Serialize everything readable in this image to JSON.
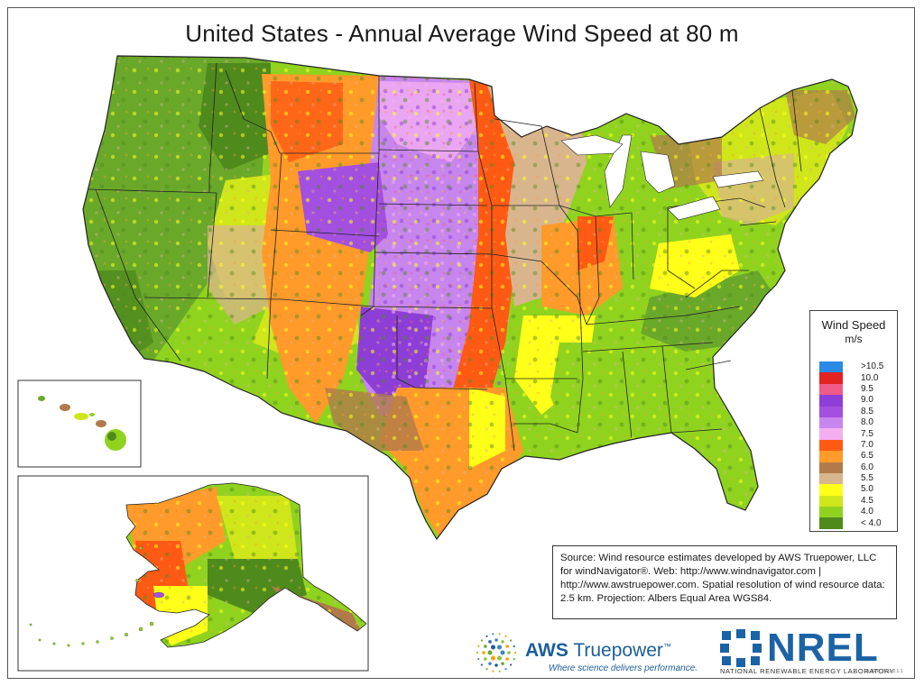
{
  "title": "United States - Annual Average Wind Speed at 80 m",
  "legend": {
    "title": "Wind Speed",
    "unit": "m/s",
    "items": [
      {
        "label": ">10.5",
        "color": "#2a8ae6"
      },
      {
        "label": "10.0",
        "color": "#e32222"
      },
      {
        "label": "9.5",
        "color": "#ef5a8a"
      },
      {
        "label": "9.0",
        "color": "#8d3ed6"
      },
      {
        "label": "8.5",
        "color": "#a34fe0"
      },
      {
        "label": "8.0",
        "color": "#c785ee"
      },
      {
        "label": "7.5",
        "color": "#f3aef2"
      },
      {
        "label": "7.0",
        "color": "#ff5a14"
      },
      {
        "label": "6.5",
        "color": "#ff9a2b"
      },
      {
        "label": "6.0",
        "color": "#b07a4a"
      },
      {
        "label": "5.5",
        "color": "#d9b58e"
      },
      {
        "label": "5.0",
        "color": "#ffff1a"
      },
      {
        "label": "4.5",
        "color": "#cfe61a"
      },
      {
        "label": "4.0",
        "color": "#8fd31f"
      },
      {
        "label": "< 4.0",
        "color": "#4f8a1d"
      }
    ]
  },
  "source_note": "Source: Wind resource estimates developed by AWS Truepower, LLC for windNavigator®. Web: http://www.windnavigator.com | http://www.awstruepower.com. Spatial resolution of wind resource data: 2.5 km. Projection: Albers Equal Area WGS84.",
  "logos": {
    "aws_brand_a": "AWS",
    "aws_brand_b": "Truepower",
    "aws_tm": "™",
    "aws_tagline": "Where science delivers performance.",
    "nrel_name": "NREL",
    "nrel_full": "NATIONAL RENEWABLE ENERGY LABORATORY"
  },
  "date_stamp": "01-APR-2011 2.1.1",
  "insets": [
    "Hawaii",
    "Alaska"
  ]
}
